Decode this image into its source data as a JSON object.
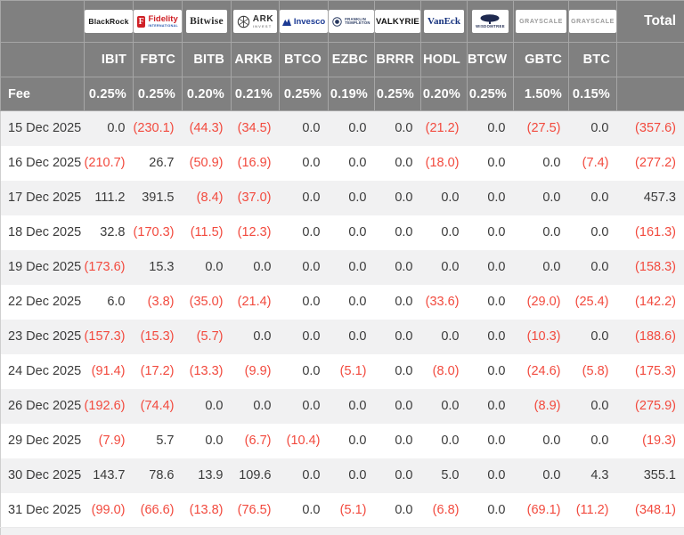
{
  "colors": {
    "header_bg": "#808080",
    "header_border": "#a6a6a6",
    "header_text": "#ffffff",
    "body_text": "#3b3b3b",
    "negative_red": "#f24a3e",
    "row_alt_gray": "#f1f1f2",
    "row_white": "#ffffff",
    "fidelity_red": "#cf2026",
    "invesco_blue": "#1b3a94",
    "vaneck_blue": "#17337e",
    "navy": "#26375f"
  },
  "header": {
    "fee_label": "Fee",
    "total_label": "Total"
  },
  "chart_data": {
    "type": "table",
    "negatives_shown_as": "(value) in red parentheses",
    "columns": [
      "IBIT",
      "FBTC",
      "BITB",
      "ARKB",
      "BTCO",
      "EZBC",
      "BRRR",
      "HODL",
      "BTCW",
      "GBTC",
      "BTC",
      "Total"
    ],
    "providers": [
      {
        "name": "BlackRock",
        "logo": "blackrock",
        "logo_text": "BlackRock",
        "ticker": "IBIT",
        "fee": "0.25%"
      },
      {
        "name": "Fidelity",
        "logo": "fidelity",
        "logo_mark": "F",
        "logo_text": "Fidelity",
        "logo_sub": "INTERNATIONAL",
        "ticker": "FBTC",
        "fee": "0.25%"
      },
      {
        "name": "Bitwise",
        "logo": "bitwise",
        "logo_text": "Bitwise",
        "ticker": "BITB",
        "fee": "0.20%"
      },
      {
        "name": "ARK Invest",
        "logo": "ark",
        "logo_text": "ARK",
        "logo_sub": "INVEST",
        "ticker": "ARKB",
        "fee": "0.21%"
      },
      {
        "name": "Invesco",
        "logo": "invesco",
        "logo_text": "Invesco",
        "ticker": "BTCO",
        "fee": "0.25%"
      },
      {
        "name": "Franklin Templeton",
        "logo": "franklin",
        "logo_text": "FRANKLIN",
        "logo_sub": "TEMPLETON",
        "ticker": "EZBC",
        "fee": "0.19%"
      },
      {
        "name": "Valkyrie",
        "logo": "valkyrie",
        "logo_text": "VALKYRIE",
        "ticker": "BRRR",
        "fee": "0.25%"
      },
      {
        "name": "VanEck",
        "logo": "vaneck",
        "logo_text": "VanEck",
        "ticker": "HODL",
        "fee": "0.20%"
      },
      {
        "name": "WisdomTree",
        "logo": "wisdomtree",
        "logo_text": "WISDOMTREE",
        "ticker": "BTCW",
        "fee": "0.25%"
      },
      {
        "name": "Grayscale",
        "logo": "grayscale",
        "logo_text": "GRAYSCALE",
        "ticker": "GBTC",
        "fee": "1.50%"
      },
      {
        "name": "Grayscale",
        "logo": "grayscale",
        "logo_text": "GRAYSCALE",
        "ticker": "BTC",
        "fee": "0.15%"
      }
    ],
    "rows": [
      {
        "date": "15 Dec 2025",
        "values": [
          0.0,
          -230.1,
          -44.3,
          -34.5,
          0.0,
          0.0,
          0.0,
          -21.2,
          0.0,
          -27.5,
          0.0
        ],
        "total": -357.6
      },
      {
        "date": "16 Dec 2025",
        "values": [
          -210.7,
          26.7,
          -50.9,
          -16.9,
          0.0,
          0.0,
          0.0,
          -18.0,
          0.0,
          0.0,
          -7.4
        ],
        "total": -277.2
      },
      {
        "date": "17 Dec 2025",
        "values": [
          111.2,
          391.5,
          -8.4,
          -37.0,
          0.0,
          0.0,
          0.0,
          0.0,
          0.0,
          0.0,
          0.0
        ],
        "total": 457.3
      },
      {
        "date": "18 Dec 2025",
        "values": [
          32.8,
          -170.3,
          -11.5,
          -12.3,
          0.0,
          0.0,
          0.0,
          0.0,
          0.0,
          0.0,
          0.0
        ],
        "total": -161.3
      },
      {
        "date": "19 Dec 2025",
        "values": [
          -173.6,
          15.3,
          0.0,
          0.0,
          0.0,
          0.0,
          0.0,
          0.0,
          0.0,
          0.0,
          0.0
        ],
        "total": -158.3
      },
      {
        "date": "22 Dec 2025",
        "values": [
          6.0,
          -3.8,
          -35.0,
          -21.4,
          0.0,
          0.0,
          0.0,
          -33.6,
          0.0,
          -29.0,
          -25.4
        ],
        "total": -142.2
      },
      {
        "date": "23 Dec 2025",
        "values": [
          -157.3,
          -15.3,
          -5.7,
          0.0,
          0.0,
          0.0,
          0.0,
          0.0,
          0.0,
          -10.3,
          0.0
        ],
        "total": -188.6
      },
      {
        "date": "24 Dec 2025",
        "values": [
          -91.4,
          -17.2,
          -13.3,
          -9.9,
          0.0,
          -5.1,
          0.0,
          -8.0,
          0.0,
          -24.6,
          -5.8
        ],
        "total": -175.3
      },
      {
        "date": "26 Dec 2025",
        "values": [
          -192.6,
          -74.4,
          0.0,
          0.0,
          0.0,
          0.0,
          0.0,
          0.0,
          0.0,
          -8.9,
          0.0
        ],
        "total": -275.9
      },
      {
        "date": "29 Dec 2025",
        "values": [
          -7.9,
          5.7,
          0.0,
          -6.7,
          -10.4,
          0.0,
          0.0,
          0.0,
          0.0,
          0.0,
          0.0
        ],
        "total": -19.3
      },
      {
        "date": "30 Dec 2025",
        "values": [
          143.7,
          78.6,
          13.9,
          109.6,
          0.0,
          0.0,
          0.0,
          5.0,
          0.0,
          0.0,
          4.3
        ],
        "total": 355.1
      },
      {
        "date": "31 Dec 2025",
        "values": [
          -99.0,
          -66.6,
          -13.8,
          -76.5,
          0.0,
          -5.1,
          0.0,
          -6.8,
          0.0,
          -69.1,
          -11.2
        ],
        "total": -348.1
      }
    ]
  }
}
